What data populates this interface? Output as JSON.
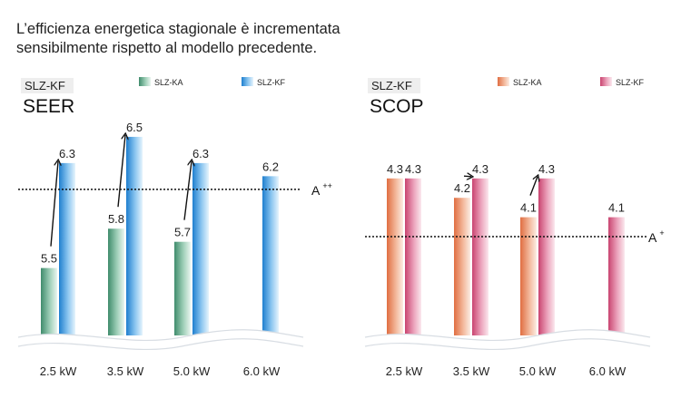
{
  "headline": {
    "line1": "L’efficienza energetica stagionale è incrementata",
    "line2": "sensibilmente rispetto al modello precedente."
  },
  "chart_data": [
    {
      "type": "bar",
      "model_label": "SLZ-KF",
      "metric": "SEER",
      "categories": [
        "2.5 kW",
        "3.5 kW",
        "5.0 kW",
        "6.0 kW"
      ],
      "series": [
        {
          "name": "SLZ-KA",
          "values": [
            5.5,
            5.8,
            5.7,
            null
          ],
          "labels": [
            "5.5",
            "5.8",
            "5.7",
            ""
          ],
          "color": "#4f9a7a"
        },
        {
          "name": "SLZ-KF",
          "values": [
            6.3,
            6.5,
            6.3,
            6.2
          ],
          "labels": [
            "6.3",
            "6.5",
            "6.3",
            "6.2"
          ],
          "color": "#2e8fd6"
        }
      ],
      "reference_line": {
        "value": 6.1,
        "label": "A",
        "sup": "++"
      },
      "ylim": [
        5.0,
        6.7
      ],
      "axis_break": true
    },
    {
      "type": "bar",
      "model_label": "SLZ-KF",
      "metric": "SCOP",
      "categories": [
        "2.5 kW",
        "3.5 kW",
        "5.0 kW",
        "6.0 kW"
      ],
      "series": [
        {
          "name": "SLZ-KA",
          "values": [
            4.3,
            4.2,
            4.1,
            null
          ],
          "labels": [
            "4.3",
            "4.2",
            "4.1",
            ""
          ],
          "color": "#e8845c"
        },
        {
          "name": "SLZ-KF",
          "values": [
            4.3,
            4.3,
            4.3,
            4.1
          ],
          "labels": [
            "4.3",
            "4.3",
            "4.3",
            "4.1"
          ],
          "color": "#d65a7e"
        }
      ],
      "reference_line": {
        "value": 4.0,
        "label": "A",
        "sup": "+"
      },
      "ylim": [
        3.5,
        4.5
      ],
      "axis_break": true
    }
  ]
}
